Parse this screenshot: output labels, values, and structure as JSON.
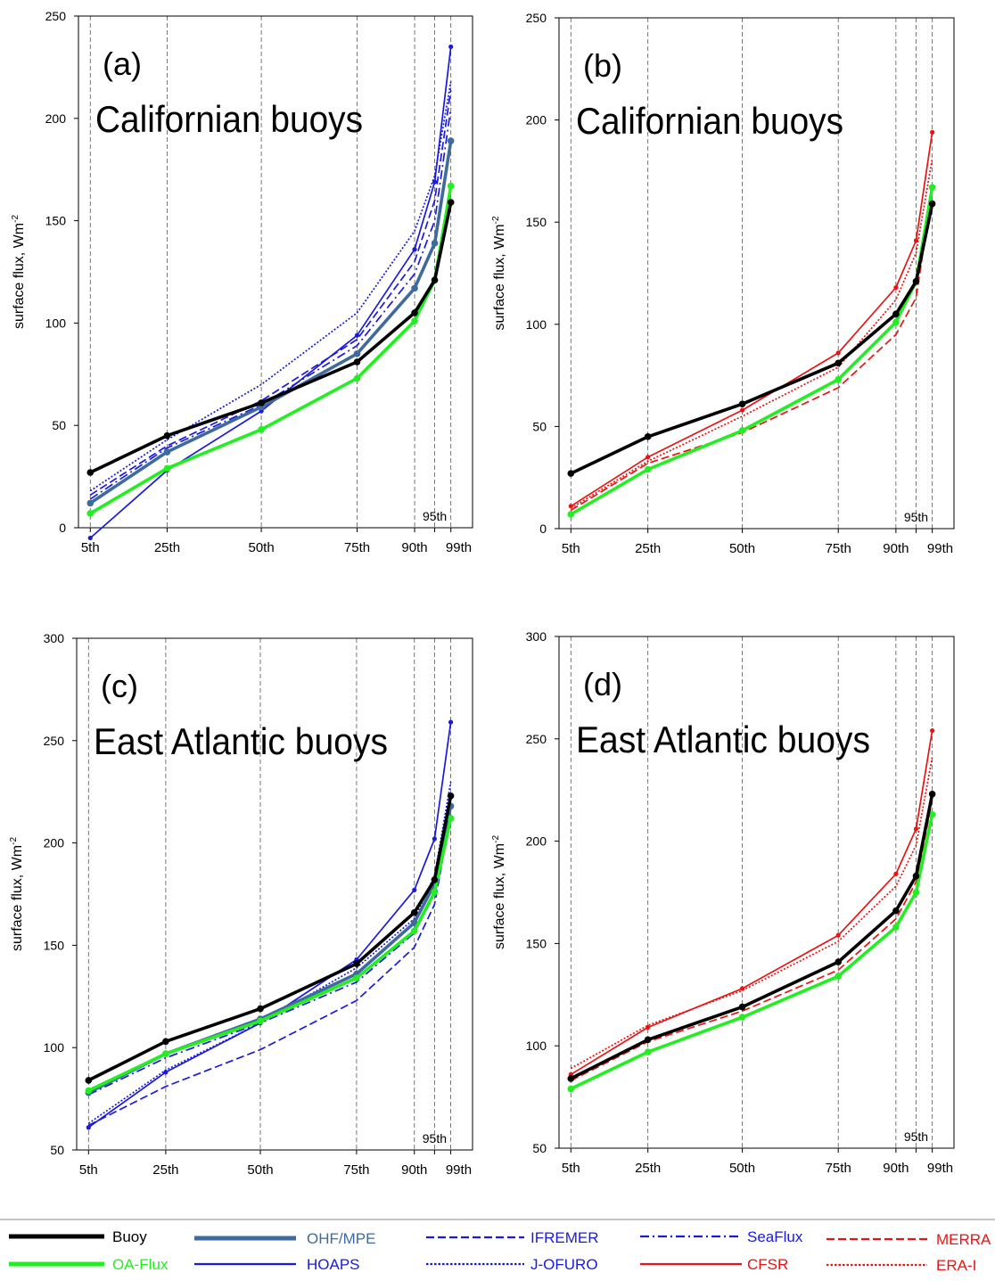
{
  "chart_data": [
    {
      "id": "a",
      "type": "line",
      "panel_label": "(a)",
      "title": "Californian buoys",
      "ylabel": "surface flux, Wm",
      "ylabel_sup": "-2",
      "ylim": [
        0,
        250
      ],
      "yticks": [
        0,
        50,
        100,
        150,
        200,
        250
      ],
      "categories": [
        "5th",
        "25th",
        "50th",
        "75th",
        "90th",
        "95th",
        "99th"
      ],
      "x": [
        5,
        25,
        50,
        75,
        90,
        95,
        99
      ],
      "series": [
        {
          "name": "Buoy",
          "values": [
            27,
            45,
            61,
            81,
            105,
            121,
            159
          ]
        },
        {
          "name": "OA-Flux",
          "values": [
            7,
            29,
            48,
            73,
            101,
            121,
            167
          ]
        },
        {
          "name": "OHF/MPE",
          "values": [
            12,
            37,
            59,
            85,
            117,
            139,
            189
          ]
        },
        {
          "name": "HOAPS",
          "values": [
            -5,
            28,
            57,
            94,
            136,
            169,
            235
          ]
        },
        {
          "name": "IFREMER",
          "values": [
            16,
            40,
            62,
            92,
            130,
            160,
            214
          ]
        },
        {
          "name": "J-OFURO",
          "values": [
            18,
            43,
            70,
            105,
            145,
            172,
            218
          ]
        },
        {
          "name": "SeaFlux",
          "values": [
            14,
            39,
            60,
            89,
            124,
            150,
            205
          ]
        }
      ]
    },
    {
      "id": "b",
      "type": "line",
      "panel_label": "(b)",
      "title": "Californian buoys",
      "ylabel": "surface flux, Wm",
      "ylabel_sup": "-2",
      "ylim": [
        0,
        250
      ],
      "yticks": [
        0,
        50,
        100,
        150,
        200,
        250
      ],
      "categories": [
        "5th",
        "25th",
        "50th",
        "75th",
        "90th",
        "95th",
        "99th"
      ],
      "x": [
        5,
        25,
        50,
        75,
        90,
        95,
        99
      ],
      "series": [
        {
          "name": "Buoy",
          "values": [
            27,
            45,
            61,
            81,
            105,
            121,
            159
          ]
        },
        {
          "name": "OA-Flux",
          "values": [
            7,
            29,
            48,
            73,
            101,
            121,
            167
          ]
        },
        {
          "name": "CFSR",
          "values": [
            11,
            35,
            58,
            86,
            118,
            141,
            194
          ]
        },
        {
          "name": "MERRA",
          "values": [
            9,
            32,
            47,
            69,
            95,
            113,
            165
          ]
        },
        {
          "name": "ERA-I",
          "values": [
            10,
            33,
            55,
            79,
            112,
            135,
            181
          ]
        }
      ]
    },
    {
      "id": "c",
      "type": "line",
      "panel_label": "(c)",
      "title": "East Atlantic buoys",
      "ylabel": "surface flux, Wm",
      "ylabel_sup": "-2",
      "ylim": [
        50,
        300
      ],
      "yticks": [
        50,
        100,
        150,
        200,
        250,
        300
      ],
      "categories": [
        "5th",
        "25th",
        "50th",
        "75th",
        "90th",
        "95th",
        "99th"
      ],
      "x": [
        5,
        25,
        50,
        75,
        90,
        95,
        99
      ],
      "series": [
        {
          "name": "Buoy",
          "values": [
            84,
            103,
            119,
            141,
            166,
            182,
            223
          ]
        },
        {
          "name": "OA-Flux",
          "values": [
            79,
            97,
            113,
            134,
            157,
            176,
            212
          ]
        },
        {
          "name": "OHF/MPE",
          "values": [
            78,
            97,
            114,
            136,
            161,
            180,
            218
          ]
        },
        {
          "name": "HOAPS",
          "values": [
            61,
            88,
            112,
            143,
            177,
            202,
            259
          ]
        },
        {
          "name": "IFREMER",
          "values": [
            62,
            81,
            99,
            123,
            149,
            170,
            214
          ]
        },
        {
          "name": "J-OFURO",
          "values": [
            63,
            89,
            112,
            139,
            163,
            184,
            230
          ]
        },
        {
          "name": "SeaFlux",
          "values": [
            77,
            95,
            112,
            132,
            156,
            175,
            222
          ]
        }
      ]
    },
    {
      "id": "d",
      "type": "line",
      "panel_label": "(d)",
      "title": "East Atlantic buoys",
      "ylabel": "surface flux, Wm",
      "ylabel_sup": "-2",
      "ylim": [
        50,
        300
      ],
      "yticks": [
        50,
        100,
        150,
        200,
        250,
        300
      ],
      "categories": [
        "5th",
        "25th",
        "50th",
        "75th",
        "90th",
        "95th",
        "99th"
      ],
      "x": [
        5,
        25,
        50,
        75,
        90,
        95,
        99
      ],
      "series": [
        {
          "name": "Buoy",
          "values": [
            84,
            103,
            119,
            141,
            166,
            183,
            223
          ]
        },
        {
          "name": "OA-Flux",
          "values": [
            79,
            97,
            114,
            134,
            158,
            175,
            213
          ]
        },
        {
          "name": "CFSR",
          "values": [
            86,
            109,
            128,
            154,
            184,
            206,
            254
          ]
        },
        {
          "name": "MERRA",
          "values": [
            83,
            102,
            117,
            137,
            162,
            180,
            220
          ]
        },
        {
          "name": "ERA-I",
          "values": [
            89,
            110,
            127,
            151,
            178,
            198,
            241
          ]
        }
      ]
    }
  ],
  "legend": [
    {
      "name": "Buoy",
      "color": "#000000",
      "style": "solid",
      "weight": "thick"
    },
    {
      "name": "OA-Flux",
      "color": "#22ee22",
      "style": "solid",
      "weight": "thick"
    },
    {
      "name": "OHF/MPE",
      "color": "#3f6a9c",
      "style": "solid",
      "weight": "thick"
    },
    {
      "name": "HOAPS",
      "color": "#1a1adc",
      "style": "solid",
      "weight": "thin"
    },
    {
      "name": "IFREMER",
      "color": "#1a1adc",
      "style": "dashed",
      "weight": "thin"
    },
    {
      "name": "J-OFURO",
      "color": "#1a1adc",
      "style": "dotted",
      "weight": "thin"
    },
    {
      "name": "SeaFlux",
      "color": "#1a1adc",
      "style": "dashdot",
      "weight": "thin"
    },
    {
      "name": "CFSR",
      "color": "#e81414",
      "style": "solid",
      "weight": "thin"
    },
    {
      "name": "MERRA",
      "color": "#e81414",
      "style": "dashed",
      "weight": "thin"
    },
    {
      "name": "ERA-I",
      "color": "#e81414",
      "style": "dotted",
      "weight": "thin"
    }
  ]
}
